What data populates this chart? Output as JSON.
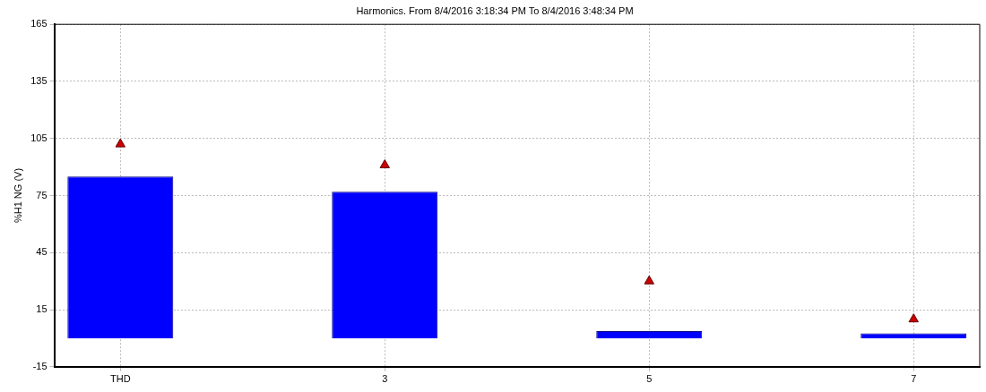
{
  "chart_data": {
    "type": "bar",
    "title": "Harmonics. From 8/4/2016 3:18:34 PM To 8/4/2016 3:48:34 PM",
    "ylabel": "%H1 NG (V)",
    "categories": [
      "THD",
      null,
      "3",
      null,
      "5",
      null,
      "7"
    ],
    "series": [
      {
        "color": "#0000ff",
        "values": [
          85,
          null,
          77,
          null,
          3.7,
          null,
          2.6
        ]
      },
      {
        "type": "scatter",
        "color": "#cc0000",
        "marker": "triangle",
        "values": [
          102,
          null,
          91,
          null,
          30,
          null,
          10
        ]
      }
    ],
    "ylim": [
      -15,
      165
    ],
    "yticks": [
      -15,
      15,
      45,
      75,
      105,
      135,
      165
    ],
    "grid": true,
    "legend": false
  }
}
